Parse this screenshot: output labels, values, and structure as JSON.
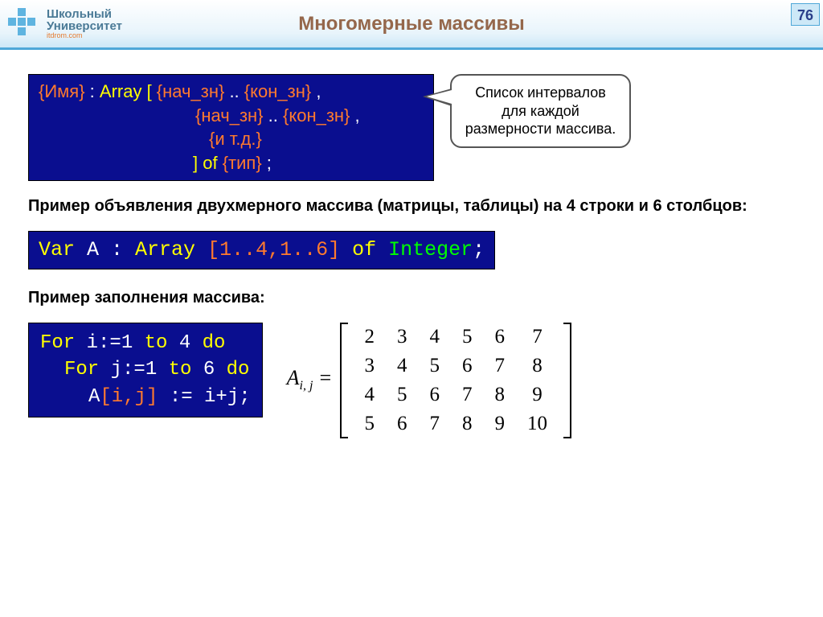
{
  "header": {
    "logo_line1": "Школьный",
    "logo_line2": "Университет",
    "logo_url": "itdrom.com",
    "title": "Многомерные массивы",
    "page_number": "76"
  },
  "syntax": {
    "name_ph": "{Имя}",
    "colon": " : ",
    "array_kw": "Array",
    "lbrack": " [ ",
    "start_ph": "{нач_зн}",
    "range": " .. ",
    "end_ph": "{кон_зн}",
    "comma": " ,",
    "etc_ph": "{и т.д.}",
    "rbrack": "]",
    "of_kw": " of ",
    "type_ph": "{тип}",
    "semic": " ;"
  },
  "callout": {
    "text": "Список интервалов для каждой размерности массива."
  },
  "example1_label": "Пример объявления двухмерного массива (матрицы, таблицы) на 4 строки и 6 столбцов:",
  "code1": {
    "var_kw": "Var ",
    "name": "A",
    "colon": " : ",
    "array_kw": "Array ",
    "brackets": "[1..4,1..6]",
    "of_kw": " of ",
    "type": "Integer",
    "semic": ";"
  },
  "example2_label": "Пример заполнения массива:",
  "code2": {
    "line1_kw1": "For ",
    "line1_a": "i:=1 ",
    "line1_kw2": "to ",
    "line1_b": "4 ",
    "line1_kw3": "do",
    "line2_kw1": "For ",
    "line2_a": "j:=1 ",
    "line2_kw2": "to ",
    "line2_b": "6 ",
    "line2_kw3": "do",
    "line3_a": "A",
    "line3_br": "[i,j]",
    "line3_b": " := i+j;"
  },
  "matrix": {
    "label_html": "A",
    "label_sub": "i, j",
    "equals": " =",
    "rows": [
      [
        "2",
        "3",
        "4",
        "5",
        "6",
        "7"
      ],
      [
        "3",
        "4",
        "5",
        "6",
        "7",
        "8"
      ],
      [
        "4",
        "5",
        "6",
        "7",
        "8",
        "9"
      ],
      [
        "5",
        "6",
        "7",
        "8",
        "9",
        "10"
      ]
    ]
  },
  "colors": {
    "code_bg": "#0a0e8f",
    "kw": "#ffff00",
    "brace": "#ff7a2e",
    "type": "#00ff00",
    "white": "#ffffff",
    "title": "#95674b",
    "header_border": "#4fa8d8"
  }
}
